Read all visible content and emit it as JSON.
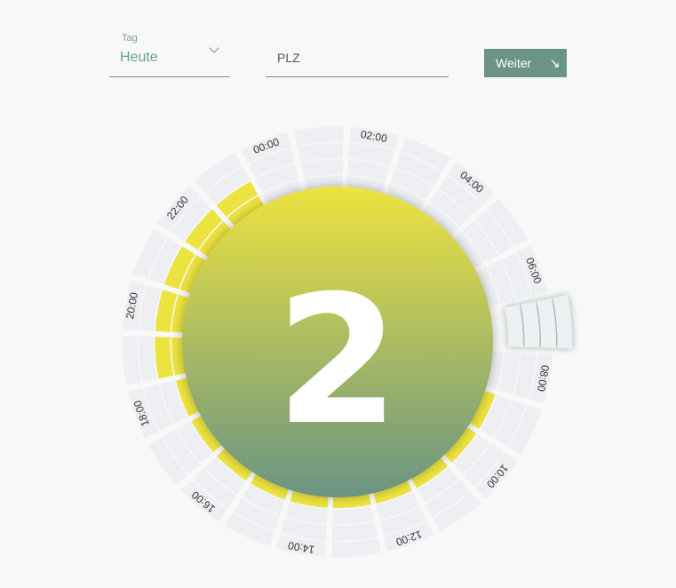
{
  "form": {
    "day": {
      "label": "Tag",
      "value": "Heute",
      "icon": "chevron-down-icon"
    },
    "plz": {
      "placeholder": "PLZ"
    },
    "next_button": {
      "label": "Weiter",
      "icon": "arrow-down-right-icon",
      "arrow": "↘"
    }
  },
  "dial": {
    "center_value": "2",
    "selected_hour": 7,
    "colors": {
      "filled": "#ede33f",
      "empty": "#eeeff2",
      "button": "#6b9484",
      "gradient_top": "#ede33f",
      "gradient_bottom": "#6a9484"
    },
    "hour_labels": [
      "00:00",
      "02:00",
      "04:00",
      "06:00",
      "08:00",
      "10:00",
      "12:00",
      "14:00",
      "16:00",
      "18:00",
      "20:00",
      "22:00"
    ],
    "filled_cells_per_hour": [
      0,
      0,
      0,
      0,
      0,
      0,
      0,
      0,
      0,
      1,
      1,
      1,
      1,
      1,
      1,
      1,
      1,
      1,
      1,
      2,
      2,
      2,
      2,
      2
    ]
  }
}
